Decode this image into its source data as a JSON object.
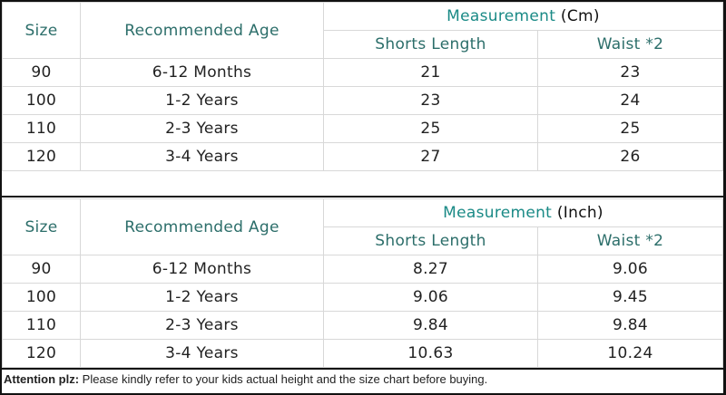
{
  "colors": {
    "header_text": "#2c6e6a",
    "measurement_text": "#1a8a86",
    "grid": "#d8d8d8",
    "frame": "#111111"
  },
  "tables": [
    {
      "headers": {
        "size": "Size",
        "age": "Recommended Age",
        "measurement": "Measurement",
        "unit": "(Cm)",
        "shorts": "Shorts Length",
        "waist": "Waist *2"
      },
      "rows": [
        [
          "90",
          "6-12 Months",
          "21",
          "23"
        ],
        [
          "100",
          "1-2 Years",
          "23",
          "24"
        ],
        [
          "110",
          "2-3 Years",
          "25",
          "25"
        ],
        [
          "120",
          "3-4 Years",
          "27",
          "26"
        ]
      ]
    },
    {
      "headers": {
        "size": "Size",
        "age": "Recommended Age",
        "measurement": "Measurement",
        "unit": "(Inch)",
        "shorts": "Shorts Length",
        "waist": "Waist *2"
      },
      "rows": [
        [
          "90",
          "6-12 Months",
          "8.27",
          "9.06"
        ],
        [
          "100",
          "1-2 Years",
          "9.06",
          "9.45"
        ],
        [
          "110",
          "2-3 Years",
          "9.84",
          "9.84"
        ],
        [
          "120",
          "3-4 Years",
          "10.63",
          "10.24"
        ]
      ]
    }
  ],
  "note": {
    "label": "Attention plz:",
    "text": " Please kindly refer to your kids actual height and the size chart before buying."
  }
}
